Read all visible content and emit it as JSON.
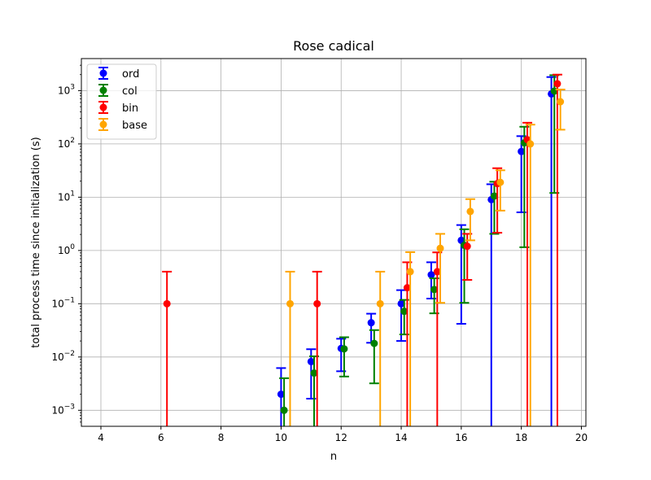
{
  "chart_data": {
    "type": "scatter",
    "title": "Rose cadical",
    "xlabel": "n",
    "ylabel": "total process time since initialization (s)",
    "xlim": [
      3.35,
      20.15
    ],
    "ylim": [
      0.0005,
      4000
    ],
    "xscale": "linear",
    "yscale": "log",
    "xticks": [
      4,
      6,
      8,
      10,
      12,
      14,
      16,
      18,
      20
    ],
    "xtick_labels": [
      "4",
      "6",
      "8",
      "10",
      "12",
      "14",
      "16",
      "18",
      "20"
    ],
    "yticks": [
      0.001,
      0.01,
      0.1,
      1,
      10,
      100,
      1000
    ],
    "ytick_labels": [
      {
        "base": "10",
        "exp": "−3"
      },
      {
        "base": "10",
        "exp": "−2"
      },
      {
        "base": "10",
        "exp": "−1"
      },
      {
        "base": "10",
        "exp": "0"
      },
      {
        "base": "10",
        "exp": "1"
      },
      {
        "base": "10",
        "exp": "2"
      },
      {
        "base": "10",
        "exp": "3"
      }
    ],
    "grid": true,
    "legend": "top-left",
    "series": [
      {
        "name": "ord",
        "color": "#0000ff",
        "offset": 0,
        "points": [
          {
            "x": 10,
            "y": 0.002,
            "lo": 1e-07,
            "hi": 0.0062
          },
          {
            "x": 11,
            "y": 0.0082,
            "lo": 0.00165,
            "hi": 0.014
          },
          {
            "x": 12,
            "y": 0.0145,
            "lo": 0.0054,
            "hi": 0.022
          },
          {
            "x": 13,
            "y": 0.044,
            "lo": 0.0185,
            "hi": 0.065
          },
          {
            "x": 14,
            "y": 0.1,
            "lo": 0.02,
            "hi": 0.18
          },
          {
            "x": 15,
            "y": 0.35,
            "lo": 0.125,
            "hi": 0.6
          },
          {
            "x": 16,
            "y": 1.55,
            "lo": 0.042,
            "hi": 3.0
          },
          {
            "x": 17,
            "y": 9.0,
            "lo": 1e-07,
            "hi": 17.5
          },
          {
            "x": 18,
            "y": 72,
            "lo": 5.2,
            "hi": 140
          },
          {
            "x": 19,
            "y": 870,
            "lo": 1e-07,
            "hi": 1800
          }
        ]
      },
      {
        "name": "col",
        "color": "#008000",
        "offset": 0.1,
        "points": [
          {
            "x": 10,
            "y": 0.001,
            "lo": 1e-07,
            "hi": 0.004
          },
          {
            "x": 11,
            "y": 0.005,
            "lo": 1e-07,
            "hi": 0.0103
          },
          {
            "x": 12,
            "y": 0.0142,
            "lo": 0.0043,
            "hi": 0.0235
          },
          {
            "x": 13,
            "y": 0.018,
            "lo": 0.0032,
            "hi": 0.032
          },
          {
            "x": 14,
            "y": 0.072,
            "lo": 0.0265,
            "hi": 0.118
          },
          {
            "x": 15,
            "y": 0.185,
            "lo": 0.066,
            "hi": 0.3
          },
          {
            "x": 16,
            "y": 1.25,
            "lo": 0.104,
            "hi": 2.5
          },
          {
            "x": 17,
            "y": 10.5,
            "lo": 2.05,
            "hi": 19.5
          },
          {
            "x": 18,
            "y": 105,
            "lo": 1.15,
            "hi": 210
          },
          {
            "x": 19,
            "y": 980,
            "lo": 12,
            "hi": 1950
          }
        ]
      },
      {
        "name": "bin",
        "color": "#ff0000",
        "offset": 0.2,
        "points": [
          {
            "x": 6,
            "y": 0.1,
            "lo": 1e-07,
            "hi": 0.4
          },
          {
            "x": 11,
            "y": 0.1,
            "lo": 1e-07,
            "hi": 0.4
          },
          {
            "x": 14,
            "y": 0.2,
            "lo": 1e-07,
            "hi": 0.6
          },
          {
            "x": 15,
            "y": 0.4,
            "lo": 1e-07,
            "hi": 0.92
          },
          {
            "x": 16,
            "y": 1.2,
            "lo": 0.28,
            "hi": 2.05
          },
          {
            "x": 17,
            "y": 18,
            "lo": 2.15,
            "hi": 35
          },
          {
            "x": 18,
            "y": 120,
            "lo": 1e-07,
            "hi": 250
          },
          {
            "x": 19,
            "y": 1350,
            "lo": 1e-07,
            "hi": 2000
          }
        ]
      },
      {
        "name": "base",
        "color": "#ffa500",
        "offset": 0.3,
        "points": [
          {
            "x": 10,
            "y": 0.1,
            "lo": 1e-07,
            "hi": 0.4
          },
          {
            "x": 13,
            "y": 0.1,
            "lo": 1e-07,
            "hi": 0.4
          },
          {
            "x": 14,
            "y": 0.4,
            "lo": 1e-07,
            "hi": 0.93
          },
          {
            "x": 15,
            "y": 1.1,
            "lo": 0.104,
            "hi": 2.05
          },
          {
            "x": 16,
            "y": 5.4,
            "lo": 1.55,
            "hi": 9.2
          },
          {
            "x": 17,
            "y": 19,
            "lo": 5.6,
            "hi": 32
          },
          {
            "x": 18,
            "y": 100,
            "lo": 1e-07,
            "hi": 230
          },
          {
            "x": 19,
            "y": 620,
            "lo": 185,
            "hi": 1050
          }
        ]
      }
    ]
  }
}
